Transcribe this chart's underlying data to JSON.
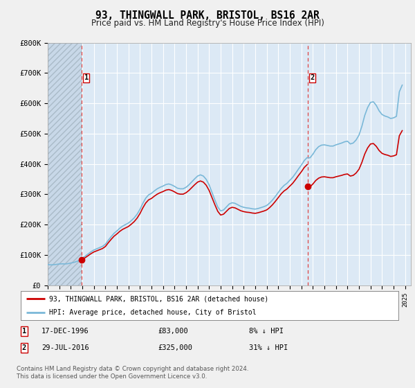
{
  "title": "93, THINGWALL PARK, BRISTOL, BS16 2AR",
  "subtitle": "Price paid vs. HM Land Registry's House Price Index (HPI)",
  "title_fontsize": 10.5,
  "subtitle_fontsize": 8.5,
  "ylim": [
    0,
    800000
  ],
  "yticks": [
    0,
    100000,
    200000,
    300000,
    400000,
    500000,
    600000,
    700000,
    800000
  ],
  "ytick_labels": [
    "£0",
    "£100K",
    "£200K",
    "£300K",
    "£400K",
    "£500K",
    "£600K",
    "£700K",
    "£800K"
  ],
  "xlim_start": 1994.0,
  "xlim_end": 2025.5,
  "sale1_date": 1996.96,
  "sale1_price": 83000,
  "sale2_date": 2016.57,
  "sale2_price": 325000,
  "hatch_end": 1996.96,
  "hpi_color": "#7ab8d8",
  "price_color": "#cc0000",
  "dashed_line_color": "#dd4444",
  "background_color": "#f0f0f0",
  "plot_bg_color": "#dce9f5",
  "legend_label1": "93, THINGWALL PARK, BRISTOL, BS16 2AR (detached house)",
  "legend_label2": "HPI: Average price, detached house, City of Bristol",
  "info1_num": "1",
  "info1_date": "17-DEC-1996",
  "info1_price": "£83,000",
  "info1_hpi": "8% ↓ HPI",
  "info2_num": "2",
  "info2_date": "29-JUL-2016",
  "info2_price": "£325,000",
  "info2_hpi": "31% ↓ HPI",
  "footer": "Contains HM Land Registry data © Crown copyright and database right 2024.\nThis data is licensed under the Open Government Licence v3.0.",
  "hpi_data_x": [
    1994.0,
    1994.25,
    1994.5,
    1994.75,
    1995.0,
    1995.25,
    1995.5,
    1995.75,
    1996.0,
    1996.25,
    1996.5,
    1996.75,
    1997.0,
    1997.25,
    1997.5,
    1997.75,
    1998.0,
    1998.25,
    1998.5,
    1998.75,
    1999.0,
    1999.25,
    1999.5,
    1999.75,
    2000.0,
    2000.25,
    2000.5,
    2000.75,
    2001.0,
    2001.25,
    2001.5,
    2001.75,
    2002.0,
    2002.25,
    2002.5,
    2002.75,
    2003.0,
    2003.25,
    2003.5,
    2003.75,
    2004.0,
    2004.25,
    2004.5,
    2004.75,
    2005.0,
    2005.25,
    2005.5,
    2005.75,
    2006.0,
    2006.25,
    2006.5,
    2006.75,
    2007.0,
    2007.25,
    2007.5,
    2007.75,
    2008.0,
    2008.25,
    2008.5,
    2008.75,
    2009.0,
    2009.25,
    2009.5,
    2009.75,
    2010.0,
    2010.25,
    2010.5,
    2010.75,
    2011.0,
    2011.25,
    2011.5,
    2011.75,
    2012.0,
    2012.25,
    2012.5,
    2012.75,
    2013.0,
    2013.25,
    2013.5,
    2013.75,
    2014.0,
    2014.25,
    2014.5,
    2014.75,
    2015.0,
    2015.25,
    2015.5,
    2015.75,
    2016.0,
    2016.25,
    2016.5,
    2016.75,
    2017.0,
    2017.25,
    2017.5,
    2017.75,
    2018.0,
    2018.25,
    2018.5,
    2018.75,
    2019.0,
    2019.25,
    2019.5,
    2019.75,
    2020.0,
    2020.25,
    2020.5,
    2020.75,
    2021.0,
    2021.25,
    2021.5,
    2021.75,
    2022.0,
    2022.25,
    2022.5,
    2022.75,
    2023.0,
    2023.25,
    2023.5,
    2023.75,
    2024.0,
    2024.25,
    2024.5,
    2024.75
  ],
  "hpi_data_y": [
    68000,
    67000,
    67500,
    68500,
    70000,
    70500,
    70000,
    71000,
    73000,
    75000,
    78000,
    82000,
    89000,
    96000,
    103000,
    110000,
    116000,
    120000,
    124000,
    128000,
    135000,
    148000,
    160000,
    171000,
    179000,
    188000,
    195000,
    200000,
    205000,
    213000,
    222000,
    234000,
    250000,
    270000,
    287000,
    298000,
    303000,
    311000,
    318000,
    323000,
    327000,
    332000,
    334000,
    331000,
    326000,
    320000,
    318000,
    318000,
    323000,
    331000,
    341000,
    351000,
    360000,
    364000,
    360000,
    349000,
    331000,
    306000,
    281000,
    258000,
    245000,
    248000,
    258000,
    268000,
    272000,
    270000,
    265000,
    260000,
    257000,
    255000,
    254000,
    252000,
    251000,
    253000,
    256000,
    259000,
    263000,
    271000,
    281000,
    293000,
    306000,
    319000,
    329000,
    336000,
    346000,
    356000,
    369000,
    383000,
    396000,
    411000,
    421000,
    420000,
    432000,
    447000,
    457000,
    462000,
    463000,
    461000,
    459000,
    459000,
    463000,
    466000,
    469000,
    473000,
    475000,
    466000,
    469000,
    479000,
    495000,
    524000,
    560000,
    586000,
    603000,
    605000,
    593000,
    575000,
    563000,
    558000,
    555000,
    550000,
    552000,
    557000,
    638000,
    660000
  ],
  "xtick_years": [
    1994,
    1995,
    1996,
    1997,
    1998,
    1999,
    2000,
    2001,
    2002,
    2003,
    2004,
    2005,
    2006,
    2007,
    2008,
    2009,
    2010,
    2011,
    2012,
    2013,
    2014,
    2015,
    2016,
    2017,
    2018,
    2019,
    2020,
    2021,
    2022,
    2023,
    2024,
    2025
  ]
}
